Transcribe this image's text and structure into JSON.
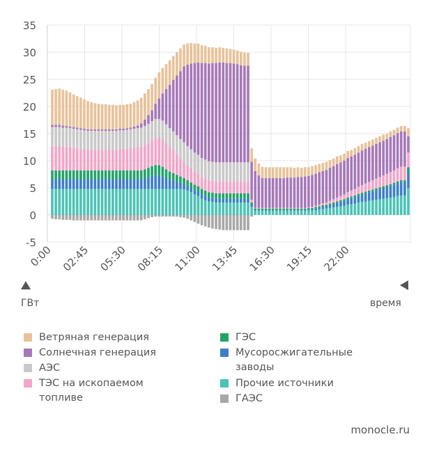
{
  "chart_data": {
    "type": "bar",
    "stacked": true,
    "ylabel": "ГВт",
    "xlabel": "время",
    "ylim": [
      -5,
      35
    ],
    "yticks": [
      -5,
      0,
      5,
      10,
      15,
      20,
      25,
      30,
      35
    ],
    "xticks": [
      "0:00",
      "02:45",
      "05:30",
      "08:15",
      "11:00",
      "13:45",
      "16:30",
      "19:15",
      "22:00"
    ],
    "grid": true,
    "legend_position": "bottom",
    "series": [
      {
        "name": "Прочие источники",
        "color": "#4cc3b6",
        "values": [
          4.8,
          4.8,
          4.8,
          4.8,
          4.8,
          4.8,
          4.8,
          4.8,
          4.8,
          4.8,
          4.8,
          4.8,
          4.8,
          4.8,
          4.8,
          4.8,
          4.8,
          4.8,
          4.8,
          4.8,
          4.8,
          4.8,
          4.8,
          4.8,
          4.8,
          4.8,
          4.8,
          4.8,
          4.8,
          4.8,
          4.8,
          4.8,
          4.8,
          4.8,
          4.8,
          4.8,
          4.8,
          4.7,
          4.5,
          4.2,
          3.8,
          3.5,
          3.0,
          2.7,
          2.5,
          2.4,
          2.3,
          2.3,
          2.3,
          2.3,
          2.3,
          2.3,
          2.3,
          2.3,
          2.3,
          2.3,
          1.5,
          0.8,
          0.8,
          0.8,
          0.8,
          0.8,
          0.8,
          0.8,
          0.8,
          0.8,
          0.8,
          0.8,
          0.8,
          0.8,
          0.8,
          0.8,
          0.8,
          0.8,
          0.9,
          1.0,
          1.1,
          1.2,
          1.3,
          1.4,
          1.5,
          1.6,
          1.7,
          1.9,
          2.0,
          2.1,
          2.3,
          2.4,
          2.5,
          2.6,
          2.7,
          2.8,
          2.9,
          3.0,
          3.1,
          3.2,
          3.3,
          3.5,
          3.6,
          3.6,
          5.0
        ]
      },
      {
        "name": "Мусоросжигательные заводы",
        "color": "#3d7fc9",
        "values": [
          1.8,
          1.8,
          1.8,
          1.8,
          1.8,
          1.8,
          1.8,
          1.8,
          1.8,
          1.8,
          1.8,
          1.8,
          1.8,
          1.8,
          1.8,
          1.8,
          1.8,
          1.8,
          1.8,
          1.8,
          1.8,
          1.8,
          1.8,
          1.8,
          1.8,
          1.8,
          2.0,
          2.2,
          2.4,
          2.5,
          2.5,
          2.3,
          2.0,
          1.7,
          1.5,
          1.3,
          1.1,
          1.0,
          0.9,
          0.8,
          0.8,
          0.8,
          0.8,
          0.8,
          0.7,
          0.7,
          0.7,
          0.7,
          0.7,
          0.7,
          0.7,
          0.7,
          0.7,
          0.7,
          0.7,
          0.7,
          0.3,
          0.1,
          0.1,
          0.1,
          0.1,
          0.1,
          0.1,
          0.1,
          0.1,
          0.1,
          0.1,
          0.1,
          0.1,
          0.1,
          0.1,
          0.1,
          0.2,
          0.2,
          0.3,
          0.3,
          0.4,
          0.4,
          0.5,
          0.6,
          0.7,
          0.8,
          0.9,
          1.0,
          1.1,
          1.2,
          1.3,
          1.4,
          1.5,
          1.6,
          1.7,
          1.8,
          1.9,
          2.0,
          2.1,
          2.2,
          2.3,
          2.4,
          2.5,
          2.5,
          3.0
        ]
      },
      {
        "name": "ГЭС",
        "color": "#23a36a",
        "values": [
          1.6,
          1.6,
          1.6,
          1.6,
          1.6,
          1.6,
          1.6,
          1.6,
          1.6,
          1.6,
          1.6,
          1.6,
          1.6,
          1.6,
          1.6,
          1.6,
          1.6,
          1.6,
          1.6,
          1.6,
          1.6,
          1.6,
          1.6,
          1.6,
          1.6,
          1.6,
          1.6,
          1.7,
          1.8,
          1.9,
          1.9,
          1.8,
          1.6,
          1.5,
          1.4,
          1.3,
          1.2,
          1.1,
          1.0,
          1.0,
          1.0,
          1.0,
          1.0,
          1.0,
          1.0,
          1.0,
          1.0,
          1.0,
          1.0,
          1.0,
          1.0,
          1.0,
          1.0,
          1.0,
          1.0,
          1.0,
          0.5,
          0.3,
          0.3,
          0.3,
          0.3,
          0.3,
          0.3,
          0.3,
          0.3,
          0.3,
          0.3,
          0.3,
          0.3,
          0.3,
          0.3,
          0.3,
          0.3,
          0.3,
          0.3,
          0.3,
          0.3,
          0.3,
          0.3,
          0.3,
          0.3,
          0.3,
          0.3,
          0.3,
          0.3,
          0.3,
          0.3,
          0.3,
          0.3,
          0.3,
          0.3,
          0.3,
          0.3,
          0.3,
          0.3,
          0.3,
          0.3,
          0.3,
          0.3,
          0.3,
          0.8
        ]
      },
      {
        "name": "ТЭС на ископаемом топливе",
        "color": "#f2a6c8",
        "values": [
          4.5,
          4.5,
          4.5,
          4.4,
          4.4,
          4.3,
          4.2,
          4.1,
          4.0,
          3.9,
          3.8,
          3.8,
          3.8,
          3.8,
          3.8,
          3.8,
          3.8,
          3.8,
          3.8,
          3.9,
          3.9,
          4.0,
          4.1,
          4.2,
          4.3,
          4.4,
          4.5,
          4.6,
          4.8,
          5.0,
          5.0,
          5.0,
          4.8,
          4.5,
          4.2,
          3.8,
          3.4,
          3.1,
          2.8,
          2.6,
          2.4,
          2.3,
          2.2,
          2.2,
          2.2,
          2.2,
          2.2,
          2.2,
          2.2,
          2.2,
          2.2,
          2.2,
          2.2,
          2.2,
          2.2,
          2.2,
          0.5,
          0.1,
          0.1,
          0.1,
          0.1,
          0.1,
          0.1,
          0.1,
          0.1,
          0.1,
          0.1,
          0.1,
          0.1,
          0.1,
          0.1,
          0.1,
          0.1,
          0.2,
          0.2,
          0.3,
          0.3,
          0.4,
          0.5,
          0.6,
          0.7,
          0.8,
          0.9,
          1.0,
          1.1,
          1.2,
          1.3,
          1.4,
          1.5,
          1.6,
          1.7,
          1.8,
          1.9,
          2.0,
          2.1,
          2.2,
          2.3,
          2.4,
          2.5,
          2.5,
          2.7
        ]
      },
      {
        "name": "АЭС",
        "color": "#c9c9c9",
        "values": [
          3.5,
          3.5,
          3.5,
          3.5,
          3.5,
          3.5,
          3.5,
          3.5,
          3.5,
          3.5,
          3.5,
          3.5,
          3.5,
          3.5,
          3.5,
          3.5,
          3.5,
          3.5,
          3.5,
          3.5,
          3.5,
          3.5,
          3.5,
          3.5,
          3.5,
          3.5,
          3.5,
          3.5,
          3.5,
          3.5,
          3.5,
          3.5,
          3.5,
          3.5,
          3.5,
          3.5,
          3.5,
          3.5,
          3.5,
          3.5,
          3.5,
          3.5,
          3.5,
          3.5,
          3.5,
          3.5,
          3.5,
          3.5,
          3.5,
          3.5,
          3.5,
          3.5,
          3.5,
          3.5,
          3.5,
          3.5,
          0,
          0,
          0,
          0,
          0,
          0,
          0,
          0,
          0,
          0,
          0,
          0,
          0,
          0,
          0,
          0,
          0,
          0,
          0,
          0,
          0,
          0,
          0,
          0,
          0,
          0,
          0,
          0,
          0,
          0,
          0,
          0,
          0,
          0,
          0,
          0,
          0,
          0,
          0,
          0,
          0,
          0,
          0,
          0,
          0
        ]
      },
      {
        "name": "Солнечная генерация",
        "color": "#a678b8",
        "values": [
          0.4,
          0.4,
          0.4,
          0.4,
          0.3,
          0.3,
          0.3,
          0.3,
          0.3,
          0.3,
          0.3,
          0.3,
          0.3,
          0.3,
          0.3,
          0.3,
          0.3,
          0.3,
          0.3,
          0.3,
          0.3,
          0.3,
          0.3,
          0.4,
          0.5,
          0.8,
          1.2,
          1.6,
          2.0,
          2.8,
          3.8,
          5.0,
          6.5,
          8.0,
          9.5,
          11.0,
          12.5,
          14.0,
          15.0,
          15.8,
          16.5,
          17.0,
          17.5,
          17.8,
          18.0,
          18.2,
          18.3,
          18.4,
          18.4,
          18.3,
          18.3,
          18.2,
          18.1,
          17.9,
          17.8,
          17.8,
          7.0,
          6.8,
          6.0,
          5.5,
          5.5,
          5.5,
          5.5,
          5.5,
          5.5,
          5.5,
          5.6,
          5.6,
          5.6,
          5.7,
          5.7,
          5.8,
          5.8,
          5.9,
          5.9,
          6.0,
          6.0,
          6.0,
          6.1,
          6.1,
          6.2,
          6.2,
          6.2,
          6.3,
          6.3,
          6.3,
          6.3,
          6.4,
          6.4,
          6.4,
          6.4,
          6.4,
          6.4,
          6.4,
          6.4,
          6.5,
          6.5,
          6.5,
          6.5,
          6.5,
          3.0
        ]
      },
      {
        "name": "Ветряная генерация",
        "color": "#e8c29a",
        "values": [
          6.5,
          6.6,
          6.7,
          6.6,
          6.5,
          6.3,
          6.0,
          5.8,
          5.6,
          5.4,
          5.2,
          5.0,
          4.8,
          4.7,
          4.6,
          4.6,
          4.5,
          4.5,
          4.4,
          4.4,
          4.4,
          4.4,
          4.4,
          4.5,
          4.6,
          4.7,
          4.8,
          4.8,
          4.8,
          4.8,
          4.8,
          4.7,
          4.6,
          4.5,
          4.4,
          4.3,
          4.2,
          4.0,
          3.9,
          3.8,
          3.6,
          3.5,
          3.3,
          3.2,
          3.0,
          2.9,
          2.8,
          2.8,
          2.7,
          2.7,
          2.6,
          2.6,
          2.5,
          2.5,
          2.4,
          2.4,
          2.5,
          2.3,
          2.2,
          2.1,
          2.0,
          2.0,
          2.0,
          2.0,
          2.0,
          2.0,
          1.9,
          1.9,
          1.8,
          1.8,
          1.7,
          1.7,
          1.6,
          1.6,
          1.6,
          1.5,
          1.5,
          1.5,
          1.4,
          1.4,
          1.4,
          1.3,
          1.3,
          1.3,
          1.2,
          1.2,
          1.2,
          1.2,
          1.1,
          1.1,
          1.1,
          1.1,
          1.1,
          1.1,
          1.0,
          1.0,
          1.0,
          1.0,
          1.0,
          1.0,
          1.5
        ]
      },
      {
        "name": "ГАЭС",
        "color": "#a8a8a8",
        "values": [
          -0.7,
          -0.8,
          -0.8,
          -0.9,
          -0.9,
          -0.9,
          -1.0,
          -1.0,
          -1.0,
          -1.0,
          -1.0,
          -1.0,
          -1.0,
          -1.0,
          -1.0,
          -1.0,
          -1.0,
          -1.0,
          -1.0,
          -1.0,
          -1.0,
          -1.0,
          -1.0,
          -1.0,
          -1.0,
          -1.0,
          -0.8,
          -0.6,
          -0.4,
          -0.3,
          -0.3,
          -0.3,
          -0.3,
          -0.3,
          -0.3,
          -0.3,
          -0.4,
          -0.5,
          -0.7,
          -1.0,
          -1.3,
          -1.6,
          -1.9,
          -2.1,
          -2.3,
          -2.5,
          -2.6,
          -2.7,
          -2.8,
          -2.8,
          -2.8,
          -2.8,
          -2.8,
          -2.8,
          -2.8,
          -2.8,
          -0.3,
          0,
          0,
          0,
          0,
          0,
          0,
          0,
          0,
          0,
          0,
          0,
          0,
          0,
          0,
          0,
          0,
          0,
          0,
          0,
          0,
          0,
          0,
          0,
          0,
          0,
          0,
          0,
          0,
          0,
          0,
          0,
          0,
          0,
          0,
          0,
          0,
          0,
          0,
          0,
          0,
          0,
          0,
          0,
          0
        ]
      }
    ]
  },
  "legend": {
    "items": [
      {
        "label": "Ветряная генерация",
        "color": "#e8c29a"
      },
      {
        "label": "Солнечная генерация",
        "color": "#a678b8"
      },
      {
        "label": "АЭС",
        "color": "#c9c9c9"
      },
      {
        "label": "ТЭС на ископаемом топливе",
        "color": "#f2a6c8"
      },
      {
        "label": "ГЭС",
        "color": "#23a36a"
      },
      {
        "label": "Мусоросжигательные заводы",
        "color": "#3d7fc9"
      },
      {
        "label": "Прочие источники",
        "color": "#4cc3b6"
      },
      {
        "label": "ГАЭС",
        "color": "#a8a8a8"
      }
    ]
  },
  "source": "monocle.ru"
}
